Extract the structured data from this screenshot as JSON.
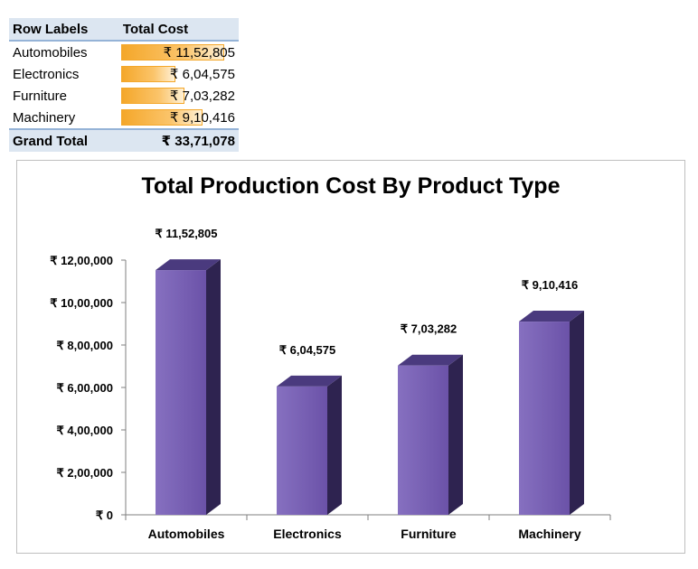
{
  "pivot": {
    "headers": {
      "row_labels": "Row Labels",
      "total_cost": "Total Cost"
    },
    "rows": [
      {
        "label": "Automobiles",
        "value": "₹ 11,52,805",
        "amount": 1152805
      },
      {
        "label": "Electronics",
        "value": "₹ 6,04,575",
        "amount": 604575
      },
      {
        "label": "Furniture",
        "value": "₹ 7,03,282",
        "amount": 703282
      },
      {
        "label": "Machinery",
        "value": "₹ 9,10,416",
        "amount": 910416
      }
    ],
    "grand_total_label": "Grand Total",
    "grand_total_value": "₹ 33,71,078"
  },
  "chart_data": {
    "type": "bar",
    "title": "Total Production Cost By Product Type",
    "categories": [
      "Automobiles",
      "Electronics",
      "Furniture",
      "Machinery"
    ],
    "values": [
      1152805,
      604575,
      703282,
      910416
    ],
    "data_labels": [
      "₹ 11,52,805",
      "₹ 6,04,575",
      "₹ 7,03,282",
      "₹ 9,10,416"
    ],
    "ylim": [
      0,
      1200000
    ],
    "yticks": [
      0,
      200000,
      400000,
      600000,
      800000,
      1000000,
      1200000
    ],
    "ytick_labels": [
      "₹ 0",
      "₹ 2,00,000",
      "₹ 4,00,000",
      "₹ 6,00,000",
      "₹ 8,00,000",
      "₹ 10,00,000",
      "₹ 12,00,000"
    ],
    "xlabel": "",
    "ylabel": "",
    "grid": false,
    "legend": "none",
    "bar_color": "#6b52a8",
    "bar_color_light": "#8670c0",
    "bar_side_color": "#2e2350",
    "bar_top_color": "#4a3a7e"
  }
}
